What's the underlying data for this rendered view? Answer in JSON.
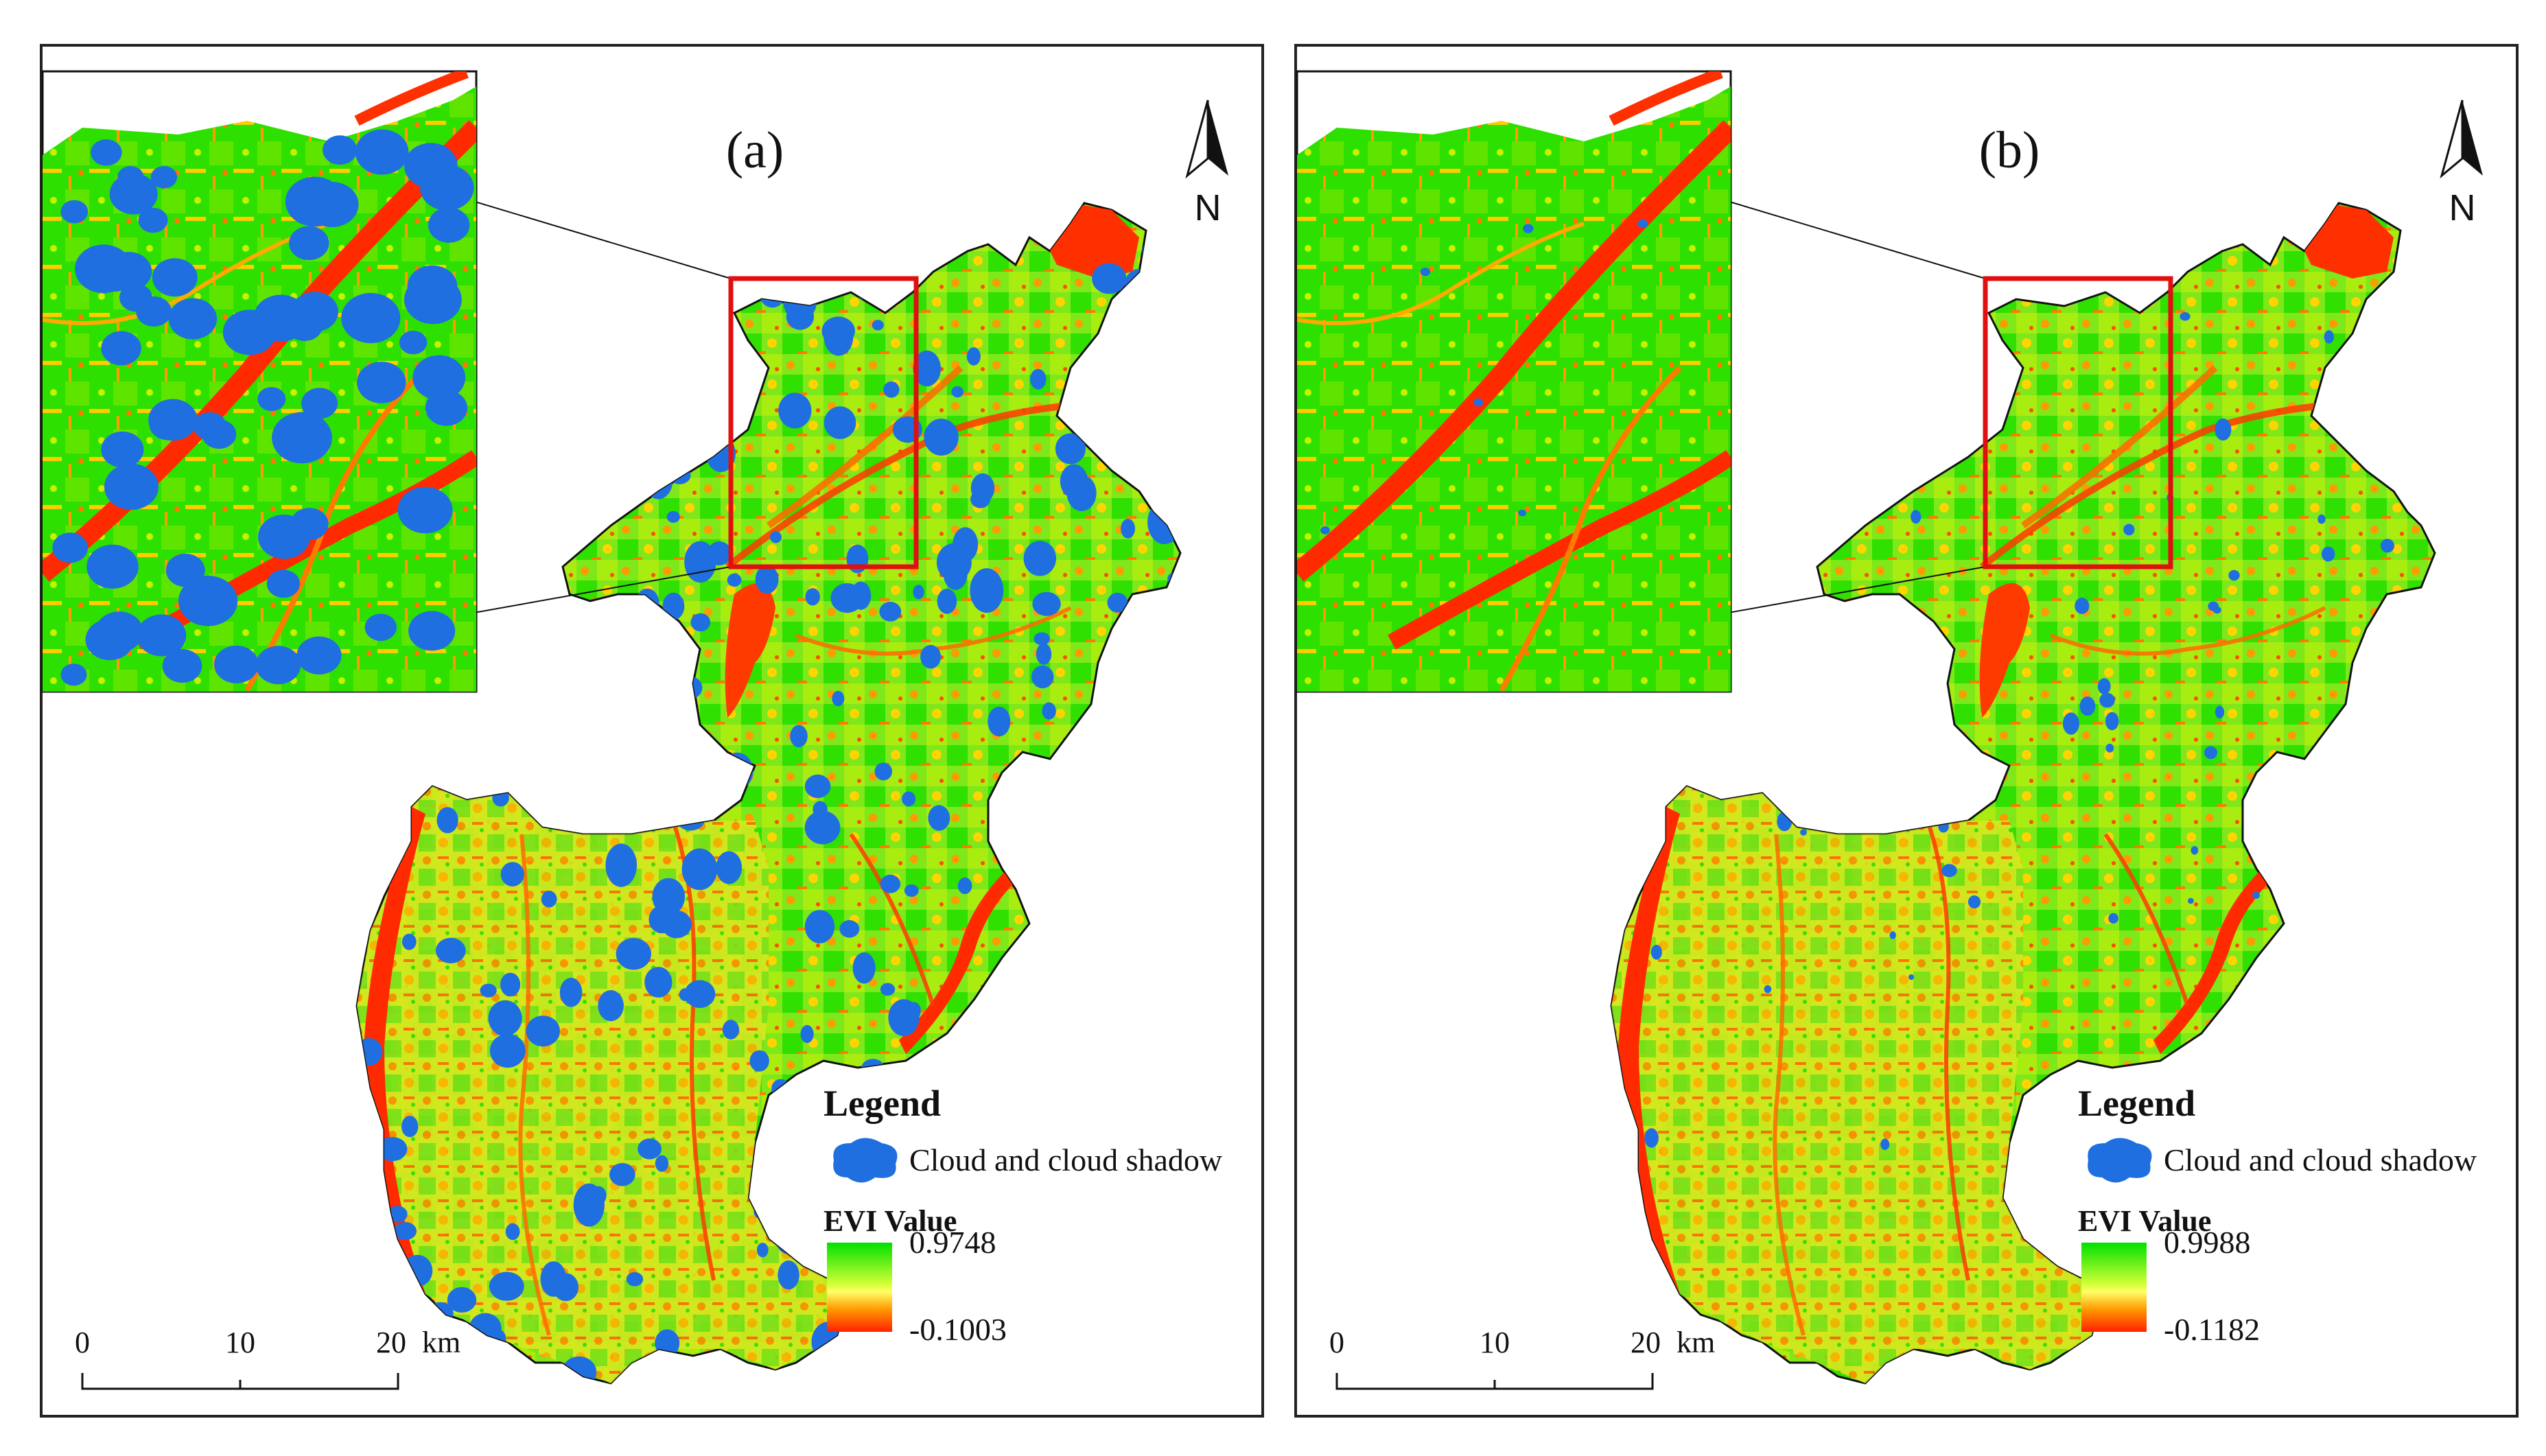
{
  "colors": {
    "evi_high": "#00e000",
    "evi_mid": "#ffff00",
    "evi_orange": "#ff9900",
    "evi_low": "#ff2000",
    "cloud": "#1f6fe0",
    "extent_box": "#e01010",
    "frame": "#222222"
  },
  "panels": [
    {
      "label": "(a)",
      "north": "N",
      "legend": {
        "title": "Legend",
        "cloud_label": "Cloud and cloud shadow",
        "evi_title": "EVI Value",
        "evi_max": "0.9748",
        "evi_min": "-0.1003"
      },
      "scale": {
        "ticks": [
          "0",
          "10",
          "20"
        ],
        "unit": "km"
      },
      "cloud_coverage": "heavy"
    },
    {
      "label": "(b)",
      "north": "N",
      "legend": {
        "title": "Legend",
        "cloud_label": "Cloud and cloud shadow",
        "evi_title": "EVI Value",
        "evi_max": "0.9988",
        "evi_min": "-0.1182"
      },
      "scale": {
        "ticks": [
          "0",
          "10",
          "20"
        ],
        "unit": "km"
      },
      "cloud_coverage": "light"
    }
  ]
}
